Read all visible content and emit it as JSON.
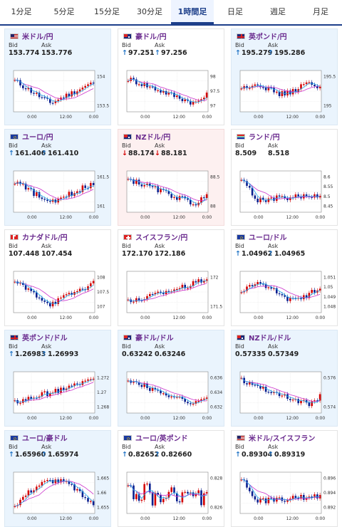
{
  "tabs": [
    "1分足",
    "5分足",
    "15分足",
    "30分足",
    "1時間足",
    "日足",
    "週足",
    "月足"
  ],
  "active_tab": 4,
  "labels": {
    "bid": "Bid",
    "ask": "Ask"
  },
  "time_labels": [
    "0:00",
    "12:00",
    "0:00"
  ],
  "colors": {
    "up": "#d40000",
    "down": "#0a1f8f",
    "ma_long": "#cc33cc",
    "ma_short": "#22aaee",
    "arrow_up": "#1e72c4",
    "arrow_down": "#d40000"
  },
  "pairs": [
    {
      "name": "米ドル/円",
      "flag": "us",
      "bid": "153.774",
      "ask": "153.776",
      "arrow": "",
      "bg": "blue",
      "axis": [
        "154",
        "153.5"
      ],
      "shape": "v"
    },
    {
      "name": "豪ドル/円",
      "flag": "au",
      "bid": "97.251",
      "ask": "97.256",
      "arrow": "up",
      "bg": "white",
      "axis": [
        "98",
        "97.5",
        "97"
      ],
      "shape": "down"
    },
    {
      "name": "英ポンド/円",
      "flag": "gb",
      "bid": "195.279",
      "ask": "195.286",
      "arrow": "up",
      "bg": "blue",
      "axis": [
        "195.5",
        "195"
      ],
      "shape": "flat"
    },
    {
      "name": "ユーロ/円",
      "flag": "eu",
      "bid": "161.406",
      "ask": "161.410",
      "arrow": "up",
      "bg": "blue",
      "axis": [
        "161.5",
        "161"
      ],
      "shape": "v"
    },
    {
      "name": "NZドル/円",
      "flag": "nz",
      "bid": "88.174",
      "ask": "88.181",
      "arrow": "down",
      "bg": "pink",
      "axis": [
        "88.5",
        "88"
      ],
      "shape": "down"
    },
    {
      "name": "ランド/円",
      "flag": "za",
      "bid": "8.509",
      "ask": "8.518",
      "arrow": "",
      "bg": "white",
      "axis": [
        "8.6",
        "8.55",
        "8.5",
        "8.45"
      ],
      "shape": "dropflat"
    },
    {
      "name": "カナダドル/円",
      "flag": "ca",
      "bid": "107.448",
      "ask": "107.454",
      "arrow": "",
      "bg": "white",
      "axis": [
        "108",
        "107.5",
        "107"
      ],
      "shape": "v"
    },
    {
      "name": "スイスフラン/円",
      "flag": "ch",
      "bid": "172.170",
      "ask": "172.186",
      "arrow": "",
      "bg": "white",
      "axis": [
        "172",
        "171.5"
      ],
      "shape": "up"
    },
    {
      "name": "ユーロ/ドル",
      "flag": "eu",
      "bid": "1.04962",
      "ask": "1.04965",
      "arrow": "up",
      "bg": "white",
      "axis": [
        "1.051",
        "1.05",
        "1.049",
        "1.048"
      ],
      "shape": "wave"
    },
    {
      "name": "英ポンド/ドル",
      "flag": "gb",
      "bid": "1.26983",
      "ask": "1.26993",
      "arrow": "up",
      "bg": "blue",
      "axis": [
        "1.272",
        "1.27",
        "1.268"
      ],
      "shape": "up"
    },
    {
      "name": "豪ドル/ドル",
      "flag": "au",
      "bid": "0.63242",
      "ask": "0.63246",
      "arrow": "",
      "bg": "blue",
      "axis": [
        "0.636",
        "0.634",
        "0.632"
      ],
      "shape": "down"
    },
    {
      "name": "NZドル/ドル",
      "flag": "nz",
      "bid": "0.57335",
      "ask": "0.57349",
      "arrow": "",
      "bg": "blue",
      "axis": [
        "0.576",
        "0.574"
      ],
      "shape": "down"
    },
    {
      "name": "ユーロ/豪ドル",
      "flag": "eu",
      "bid": "1.65960",
      "ask": "1.65974",
      "arrow": "up",
      "bg": "blue",
      "axis": [
        "1.665",
        "1.66",
        "1.655"
      ],
      "shape": "hump"
    },
    {
      "name": "ユーロ/英ポンド",
      "flag": "eu",
      "bid": "0.82652",
      "ask": "0.82660",
      "arrow": "up",
      "bg": "white",
      "axis": [
        "0.828",
        "0.826"
      ],
      "shape": "spiky"
    },
    {
      "name": "米ドル/スイスフラン",
      "flag": "us",
      "bid": "0.89304",
      "ask": "0.89319",
      "arrow": "up",
      "bg": "white",
      "axis": [
        "0.896",
        "0.894",
        "0.892"
      ],
      "shape": "dropflat"
    }
  ]
}
